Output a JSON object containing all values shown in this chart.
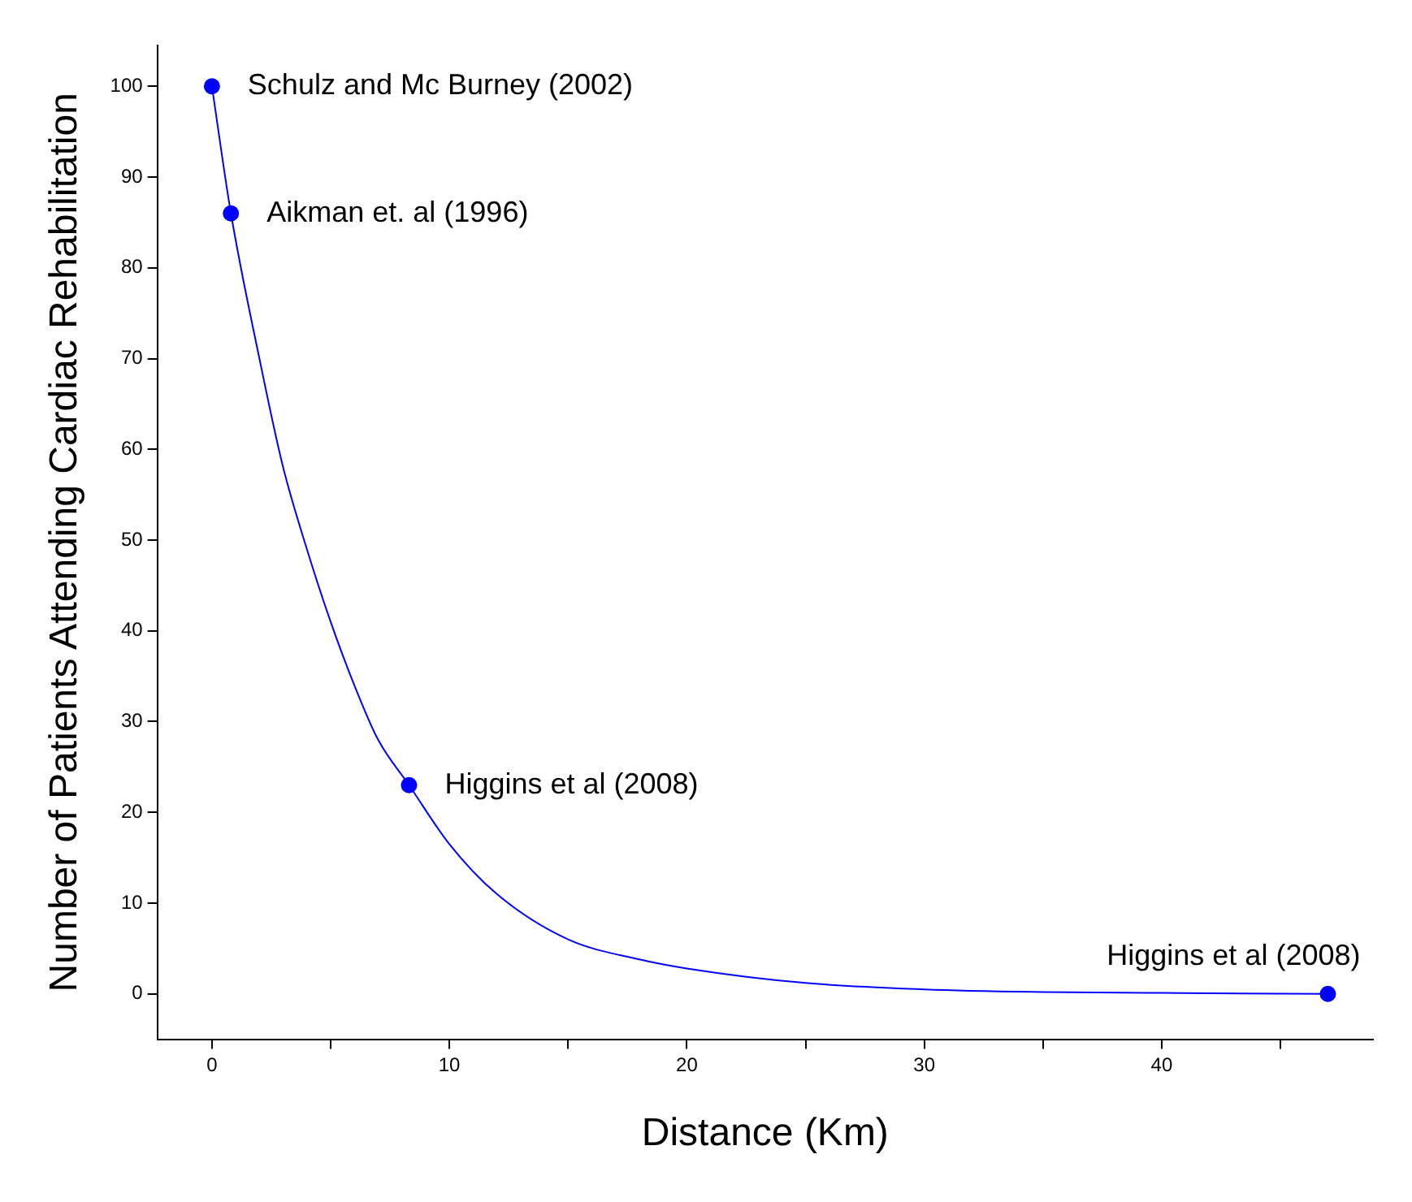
{
  "chart_data": {
    "type": "scatter",
    "xlabel": "Distance (Km)",
    "ylabel": "Number of Patients Attending Cardiac Rehabilitation",
    "xlim": [
      -2.3,
      48.9
    ],
    "ylim": [
      -5,
      104.5
    ],
    "xticks": [
      0,
      {
        "value": 5,
        "label": null
      },
      10,
      {
        "value": 15,
        "label": null
      },
      20,
      {
        "value": 25,
        "label": null
      },
      30,
      {
        "value": 35,
        "label": null
      },
      40,
      {
        "value": 45,
        "label": null
      }
    ],
    "yticks": [
      0,
      10,
      20,
      30,
      40,
      50,
      60,
      70,
      80,
      90,
      100
    ],
    "grid": false,
    "legend": false,
    "series": [
      {
        "type": "line",
        "color": "#0000ff",
        "marker": "none",
        "line_style": "solid",
        "x": [
          0,
          0.8,
          2,
          3,
          4,
          5,
          6,
          7,
          8.3,
          10,
          12,
          15,
          18,
          20,
          25,
          30,
          35,
          40,
          47
        ],
        "values": [
          100,
          86,
          70,
          58,
          49,
          41,
          34,
          28,
          23,
          16.5,
          11,
          6,
          3.8,
          2.8,
          1.2,
          0.5,
          0.2,
          0.1,
          0
        ]
      },
      {
        "color": "#0000ff",
        "marker": "circle",
        "x": [
          0,
          0.8,
          8.3,
          47
        ],
        "values": [
          100,
          86,
          23,
          0
        ]
      }
    ],
    "annotations": [
      {
        "text": "Schulz and Mc Burney (2002)",
        "x": 0,
        "y": 100
      },
      {
        "text": "Aikman et. al (1996)",
        "x": 0.8,
        "y": 86
      },
      {
        "text": "Higgins et al (2008)",
        "x": 8.3,
        "y": 23
      },
      {
        "text": "Higgins et al (2008)",
        "x": 47,
        "y": 0
      }
    ]
  }
}
